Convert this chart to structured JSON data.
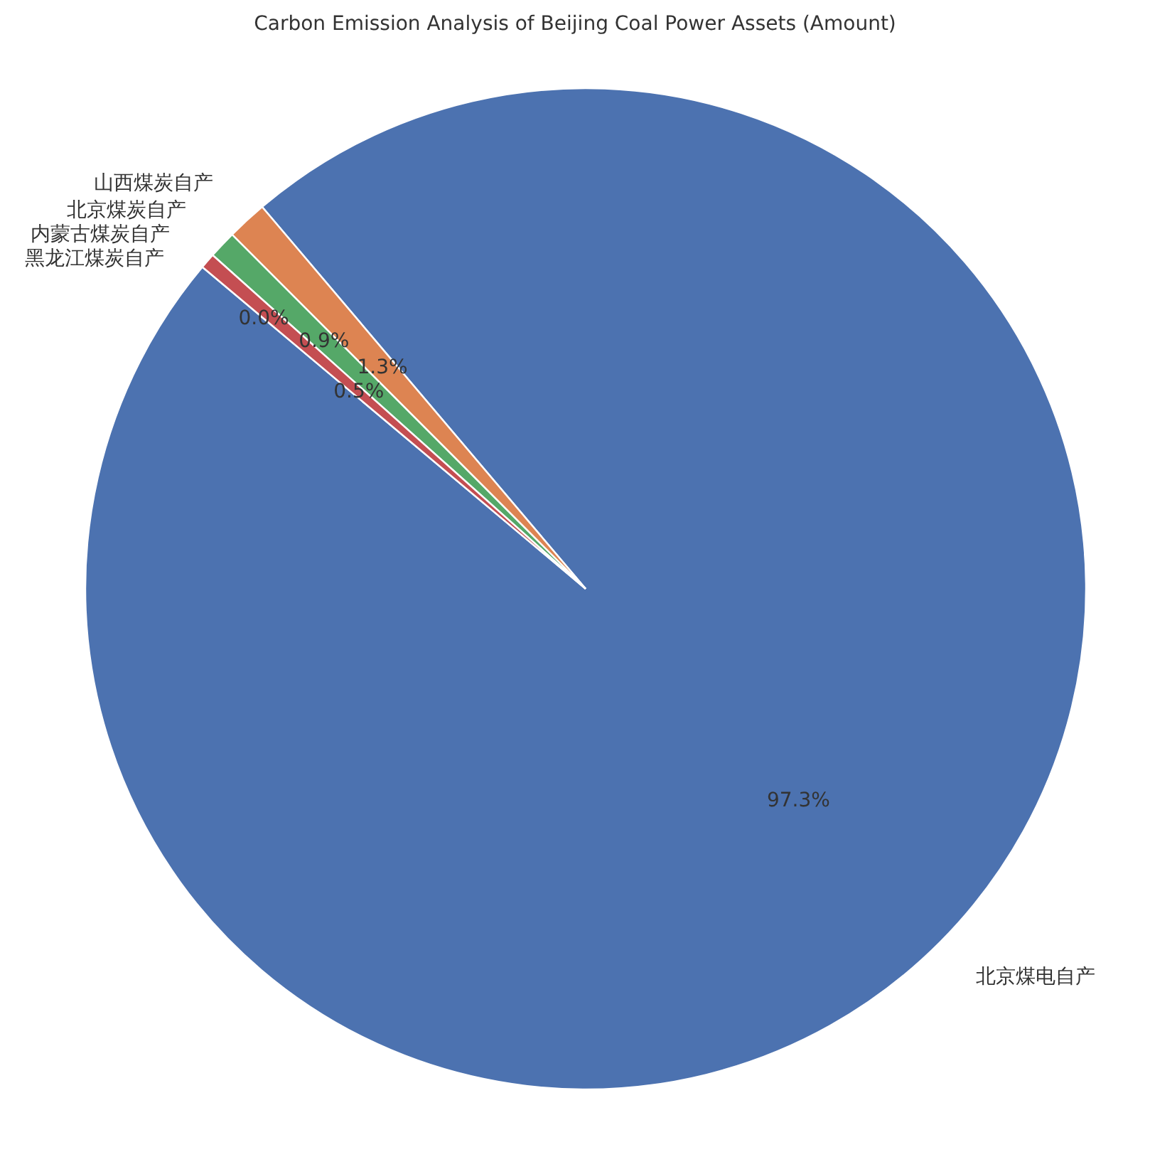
{
  "chart_data": {
    "type": "pie",
    "title": "Carbon Emission Analysis of Beijing Coal Power Assets (Amount)",
    "categories": [
      "北京煤电自产",
      "山西煤炭自产",
      "北京煤炭自产",
      "内蒙古煤炭自产",
      "黑龙江煤炭自产"
    ],
    "values": [
      97.3,
      1.3,
      0.9,
      0.5,
      0.0
    ],
    "colors": [
      "#4c72b0",
      "#dd8452",
      "#55a868",
      "#c44e52",
      "#8172b3"
    ],
    "value_labels": [
      "97.3%",
      "1.3%",
      "0.9%",
      "0.5%",
      "0.0%"
    ]
  }
}
